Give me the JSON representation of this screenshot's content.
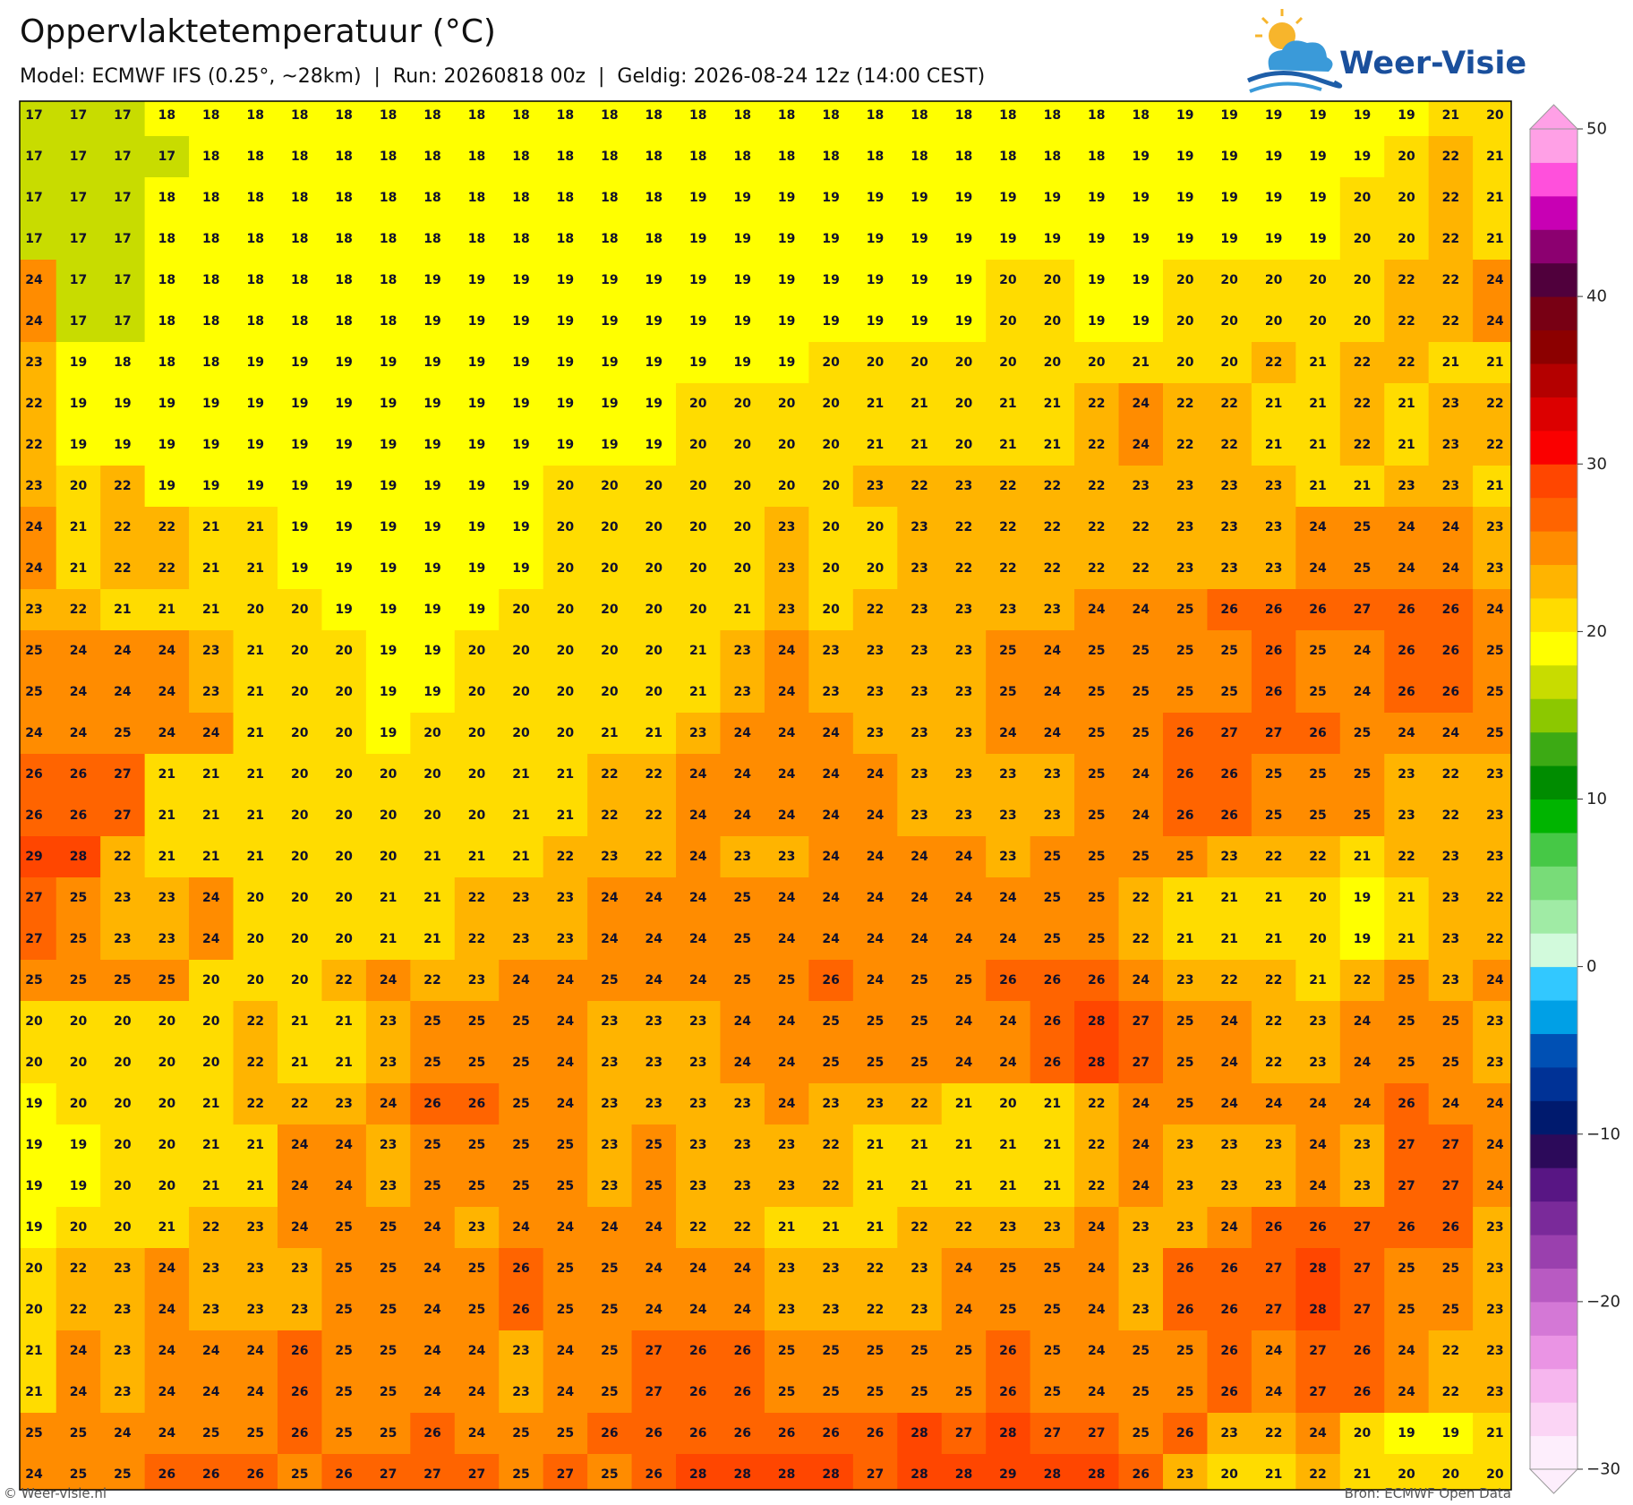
{
  "header": {
    "title": "Oppervlaktetemperatuur (°C)",
    "subtitle": "Model: ECMWF IFS (0.25°, ~28km)  |  Run: 20260818 00z  |  Geldig: 2026-08-24 12z (14:00 CEST)",
    "logo": "Weer-Visie"
  },
  "map": {
    "type": "grid",
    "values": [
      [
        17,
        17,
        17,
        18,
        18,
        18,
        18,
        18,
        18,
        18,
        18,
        18,
        18,
        18,
        18,
        18,
        18,
        18,
        18,
        18,
        18,
        18,
        18,
        18,
        18,
        18,
        19,
        19,
        19,
        19,
        19,
        19,
        21,
        20
      ],
      [
        17,
        17,
        17,
        17,
        18,
        18,
        18,
        18,
        18,
        18,
        18,
        18,
        18,
        18,
        18,
        18,
        18,
        18,
        18,
        18,
        18,
        18,
        18,
        18,
        18,
        19,
        19,
        19,
        19,
        19,
        19,
        20,
        22,
        21
      ],
      [
        17,
        17,
        17,
        18,
        18,
        18,
        18,
        18,
        18,
        18,
        18,
        18,
        18,
        18,
        18,
        19,
        19,
        19,
        19,
        19,
        19,
        19,
        19,
        19,
        19,
        19,
        19,
        19,
        19,
        19,
        20,
        20,
        22,
        21
      ],
      [
        17,
        17,
        17,
        18,
        18,
        18,
        18,
        18,
        18,
        18,
        18,
        18,
        18,
        18,
        18,
        19,
        19,
        19,
        19,
        19,
        19,
        19,
        19,
        19,
        19,
        19,
        19,
        19,
        19,
        19,
        20,
        20,
        22,
        21
      ],
      [
        24,
        17,
        17,
        18,
        18,
        18,
        18,
        18,
        18,
        19,
        19,
        19,
        19,
        19,
        19,
        19,
        19,
        19,
        19,
        19,
        19,
        19,
        20,
        20,
        19,
        19,
        20,
        20,
        20,
        20,
        20,
        22,
        22,
        24
      ],
      [
        24,
        17,
        17,
        18,
        18,
        18,
        18,
        18,
        18,
        19,
        19,
        19,
        19,
        19,
        19,
        19,
        19,
        19,
        19,
        19,
        19,
        19,
        20,
        20,
        19,
        19,
        20,
        20,
        20,
        20,
        20,
        22,
        22,
        24
      ],
      [
        23,
        19,
        18,
        18,
        18,
        19,
        19,
        19,
        19,
        19,
        19,
        19,
        19,
        19,
        19,
        19,
        19,
        19,
        20,
        20,
        20,
        20,
        20,
        20,
        20,
        21,
        20,
        20,
        22,
        21,
        22,
        22,
        21,
        21
      ],
      [
        22,
        19,
        19,
        19,
        19,
        19,
        19,
        19,
        19,
        19,
        19,
        19,
        19,
        19,
        19,
        20,
        20,
        20,
        20,
        21,
        21,
        20,
        21,
        21,
        22,
        24,
        22,
        22,
        21,
        21,
        22,
        21,
        23,
        22
      ],
      [
        22,
        19,
        19,
        19,
        19,
        19,
        19,
        19,
        19,
        19,
        19,
        19,
        19,
        19,
        19,
        20,
        20,
        20,
        20,
        21,
        21,
        20,
        21,
        21,
        22,
        24,
        22,
        22,
        21,
        21,
        22,
        21,
        23,
        22
      ],
      [
        23,
        20,
        22,
        19,
        19,
        19,
        19,
        19,
        19,
        19,
        19,
        19,
        20,
        20,
        20,
        20,
        20,
        20,
        20,
        23,
        22,
        23,
        22,
        22,
        22,
        23,
        23,
        23,
        23,
        21,
        21,
        23,
        23,
        21
      ],
      [
        24,
        21,
        22,
        22,
        21,
        21,
        19,
        19,
        19,
        19,
        19,
        19,
        20,
        20,
        20,
        20,
        20,
        23,
        20,
        20,
        23,
        22,
        22,
        22,
        22,
        22,
        23,
        23,
        23,
        24,
        25,
        24,
        24,
        23
      ],
      [
        24,
        21,
        22,
        22,
        21,
        21,
        19,
        19,
        19,
        19,
        19,
        19,
        20,
        20,
        20,
        20,
        20,
        23,
        20,
        20,
        23,
        22,
        22,
        22,
        22,
        22,
        23,
        23,
        23,
        24,
        25,
        24,
        24,
        23
      ],
      [
        23,
        22,
        21,
        21,
        21,
        20,
        20,
        19,
        19,
        19,
        19,
        20,
        20,
        20,
        20,
        20,
        21,
        23,
        20,
        22,
        23,
        23,
        23,
        23,
        24,
        24,
        25,
        26,
        26,
        26,
        27,
        26,
        26,
        24
      ],
      [
        25,
        24,
        24,
        24,
        23,
        21,
        20,
        20,
        19,
        19,
        20,
        20,
        20,
        20,
        20,
        21,
        23,
        24,
        23,
        23,
        23,
        23,
        25,
        24,
        25,
        25,
        25,
        25,
        26,
        25,
        24,
        26,
        26,
        25
      ],
      [
        25,
        24,
        24,
        24,
        23,
        21,
        20,
        20,
        19,
        19,
        20,
        20,
        20,
        20,
        20,
        21,
        23,
        24,
        23,
        23,
        23,
        23,
        25,
        24,
        25,
        25,
        25,
        25,
        26,
        25,
        24,
        26,
        26,
        25
      ],
      [
        24,
        24,
        25,
        24,
        24,
        21,
        20,
        20,
        19,
        20,
        20,
        20,
        20,
        21,
        21,
        23,
        24,
        24,
        24,
        23,
        23,
        23,
        24,
        24,
        25,
        25,
        26,
        27,
        27,
        26,
        25,
        24,
        24,
        25
      ],
      [
        26,
        26,
        27,
        21,
        21,
        21,
        20,
        20,
        20,
        20,
        20,
        21,
        21,
        22,
        22,
        24,
        24,
        24,
        24,
        24,
        23,
        23,
        23,
        23,
        25,
        24,
        26,
        26,
        25,
        25,
        25,
        23,
        22,
        23
      ],
      [
        26,
        26,
        27,
        21,
        21,
        21,
        20,
        20,
        20,
        20,
        20,
        21,
        21,
        22,
        22,
        24,
        24,
        24,
        24,
        24,
        23,
        23,
        23,
        23,
        25,
        24,
        26,
        26,
        25,
        25,
        25,
        23,
        22,
        23
      ],
      [
        29,
        28,
        22,
        21,
        21,
        21,
        20,
        20,
        20,
        21,
        21,
        21,
        22,
        23,
        22,
        24,
        23,
        23,
        24,
        24,
        24,
        24,
        23,
        25,
        25,
        25,
        25,
        23,
        22,
        22,
        21,
        22,
        23,
        23
      ],
      [
        27,
        25,
        23,
        23,
        24,
        20,
        20,
        20,
        21,
        21,
        22,
        23,
        23,
        24,
        24,
        24,
        25,
        24,
        24,
        24,
        24,
        24,
        24,
        25,
        25,
        22,
        21,
        21,
        21,
        20,
        19,
        21,
        23,
        22
      ],
      [
        27,
        25,
        23,
        23,
        24,
        20,
        20,
        20,
        21,
        21,
        22,
        23,
        23,
        24,
        24,
        24,
        25,
        24,
        24,
        24,
        24,
        24,
        24,
        25,
        25,
        22,
        21,
        21,
        21,
        20,
        19,
        21,
        23,
        22
      ],
      [
        25,
        25,
        25,
        25,
        20,
        20,
        20,
        22,
        24,
        22,
        23,
        24,
        24,
        25,
        24,
        24,
        25,
        25,
        26,
        24,
        25,
        25,
        26,
        26,
        26,
        24,
        23,
        22,
        22,
        21,
        22,
        25,
        23,
        24
      ],
      [
        20,
        20,
        20,
        20,
        20,
        22,
        21,
        21,
        23,
        25,
        25,
        25,
        24,
        23,
        23,
        23,
        24,
        24,
        25,
        25,
        25,
        24,
        24,
        26,
        28,
        27,
        25,
        24,
        22,
        23,
        24,
        25,
        25,
        23
      ],
      [
        20,
        20,
        20,
        20,
        20,
        22,
        21,
        21,
        23,
        25,
        25,
        25,
        24,
        23,
        23,
        23,
        24,
        24,
        25,
        25,
        25,
        24,
        24,
        26,
        28,
        27,
        25,
        24,
        22,
        23,
        24,
        25,
        25,
        23
      ],
      [
        19,
        20,
        20,
        20,
        21,
        22,
        22,
        23,
        24,
        26,
        26,
        25,
        24,
        23,
        23,
        23,
        23,
        24,
        23,
        23,
        22,
        21,
        20,
        21,
        22,
        24,
        25,
        24,
        24,
        24,
        24,
        26,
        24,
        24
      ],
      [
        19,
        19,
        20,
        20,
        21,
        21,
        24,
        24,
        23,
        25,
        25,
        25,
        25,
        23,
        25,
        23,
        23,
        23,
        22,
        21,
        21,
        21,
        21,
        21,
        22,
        24,
        23,
        23,
        23,
        24,
        23,
        27,
        27,
        24
      ],
      [
        19,
        19,
        20,
        20,
        21,
        21,
        24,
        24,
        23,
        25,
        25,
        25,
        25,
        23,
        25,
        23,
        23,
        23,
        22,
        21,
        21,
        21,
        21,
        21,
        22,
        24,
        23,
        23,
        23,
        24,
        23,
        27,
        27,
        24
      ],
      [
        19,
        20,
        20,
        21,
        22,
        23,
        24,
        25,
        25,
        24,
        23,
        24,
        24,
        24,
        24,
        22,
        22,
        21,
        21,
        21,
        22,
        22,
        23,
        23,
        24,
        23,
        23,
        24,
        26,
        26,
        27,
        26,
        26,
        23
      ],
      [
        20,
        22,
        23,
        24,
        23,
        23,
        23,
        25,
        25,
        24,
        25,
        26,
        25,
        25,
        24,
        24,
        24,
        23,
        23,
        22,
        23,
        24,
        25,
        25,
        24,
        23,
        26,
        26,
        27,
        28,
        27,
        25,
        25,
        23
      ],
      [
        20,
        22,
        23,
        24,
        23,
        23,
        23,
        25,
        25,
        24,
        25,
        26,
        25,
        25,
        24,
        24,
        24,
        23,
        23,
        22,
        23,
        24,
        25,
        25,
        24,
        23,
        26,
        26,
        27,
        28,
        27,
        25,
        25,
        23
      ],
      [
        21,
        24,
        23,
        24,
        24,
        24,
        26,
        25,
        25,
        24,
        24,
        23,
        24,
        25,
        27,
        26,
        26,
        25,
        25,
        25,
        25,
        25,
        26,
        25,
        24,
        25,
        25,
        26,
        24,
        27,
        26,
        24,
        22,
        23
      ],
      [
        21,
        24,
        23,
        24,
        24,
        24,
        26,
        25,
        25,
        24,
        24,
        23,
        24,
        25,
        27,
        26,
        26,
        25,
        25,
        25,
        25,
        25,
        26,
        25,
        24,
        25,
        25,
        26,
        24,
        27,
        26,
        24,
        22,
        23
      ],
      [
        25,
        25,
        24,
        24,
        25,
        25,
        26,
        25,
        25,
        26,
        24,
        25,
        25,
        26,
        26,
        26,
        26,
        26,
        26,
        26,
        28,
        27,
        28,
        27,
        27,
        25,
        26,
        23,
        22,
        24,
        20,
        19,
        19,
        21
      ],
      [
        24,
        25,
        25,
        26,
        26,
        26,
        25,
        26,
        27,
        27,
        27,
        25,
        27,
        25,
        26,
        28,
        28,
        28,
        28,
        27,
        28,
        28,
        29,
        28,
        28,
        26,
        23,
        20,
        21,
        22,
        21,
        20,
        20,
        20
      ]
    ]
  },
  "colorbar": {
    "lim": [
      -30,
      50
    ],
    "ticks": [
      {
        "value": -30,
        "label": "−30"
      },
      {
        "value": -20,
        "label": "−20"
      },
      {
        "value": -10,
        "label": "−10"
      },
      0,
      10,
      20,
      30,
      40,
      50
    ],
    "colors": [
      "#fdeefc",
      "#fbd5f5",
      "#f6b6ee",
      "#ea94e4",
      "#d478d6",
      "#b85ac2",
      "#9a40ae",
      "#7a2a9a",
      "#581684",
      "#2c0a5a",
      "#001a6e",
      "#003296",
      "#0050b4",
      "#00a0e6",
      "#32c8ff",
      "#d2fadc",
      "#a0eba5",
      "#78dc78",
      "#46c846",
      "#00b400",
      "#008c00",
      "#3caa14",
      "#8cc800",
      "#c8dc00",
      "#ffff00",
      "#ffdc00",
      "#ffb400",
      "#ff8c00",
      "#ff6400",
      "#ff4600",
      "#fa0000",
      "#dc0000",
      "#b40000",
      "#8c0000",
      "#780014",
      "#50003c",
      "#8c0070",
      "#c800b4",
      "#ff50dc",
      "#ffa0e6"
    ]
  },
  "footer": {
    "left": "© Weer-visie.nl",
    "right": "Bron: ECMWF Open Data"
  }
}
